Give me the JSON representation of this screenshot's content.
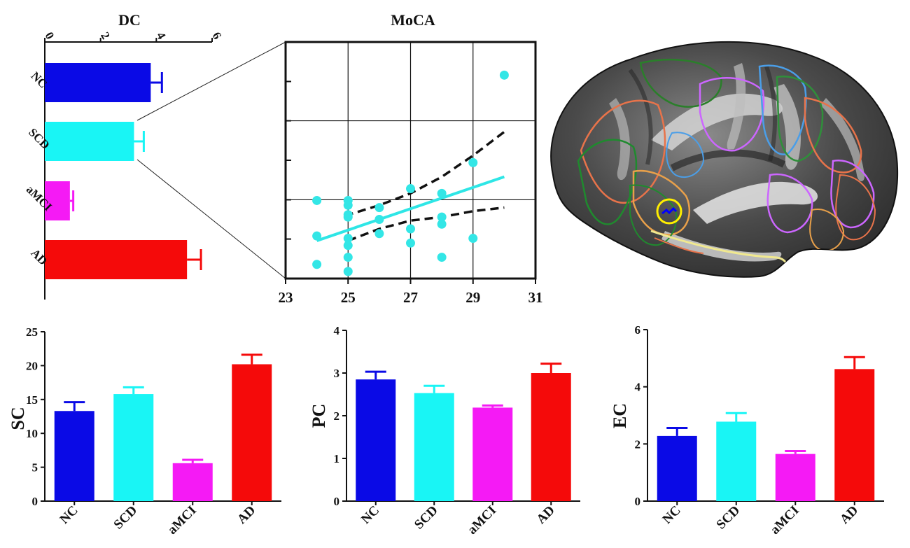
{
  "chart_data": [
    {
      "id": "dc",
      "type": "bar",
      "orientation": "horizontal",
      "title": "DC",
      "categories": [
        "NC",
        "SCD",
        "aMCI",
        "AD"
      ],
      "values": [
        3.8,
        3.2,
        0.9,
        5.1
      ],
      "errors": [
        0.4,
        0.35,
        0.12,
        0.5
      ],
      "colors": [
        "#0a0ae6",
        "#19f5f5",
        "#f51af5",
        "#f50a0a"
      ],
      "xlim": [
        0,
        6
      ],
      "ticks": [
        0,
        2,
        4,
        6
      ],
      "tick_labels": [
        "0",
        "2",
        "4",
        "6"
      ]
    },
    {
      "id": "moca",
      "type": "scatter",
      "title": "MoCA",
      "xlim": [
        23,
        31
      ],
      "xticks": [
        23,
        25,
        27,
        29,
        31
      ],
      "xtick_labels": [
        "23",
        "25",
        "27",
        "29",
        "31"
      ],
      "ylim": [
        0,
        1
      ],
      "points": [
        {
          "x": 24,
          "y": 0.33
        },
        {
          "x": 24,
          "y": 0.18
        },
        {
          "x": 24,
          "y": 0.06
        },
        {
          "x": 25,
          "y": 0.33
        },
        {
          "x": 25,
          "y": 0.31
        },
        {
          "x": 25,
          "y": 0.27
        },
        {
          "x": 25,
          "y": 0.26
        },
        {
          "x": 25,
          "y": 0.17
        },
        {
          "x": 25,
          "y": 0.14
        },
        {
          "x": 25,
          "y": 0.09
        },
        {
          "x": 25,
          "y": 0.03
        },
        {
          "x": 26,
          "y": 0.3
        },
        {
          "x": 26,
          "y": 0.25
        },
        {
          "x": 26,
          "y": 0.19
        },
        {
          "x": 27,
          "y": 0.38
        },
        {
          "x": 27,
          "y": 0.21
        },
        {
          "x": 27,
          "y": 0.15
        },
        {
          "x": 28,
          "y": 0.36
        },
        {
          "x": 28,
          "y": 0.26
        },
        {
          "x": 28,
          "y": 0.23
        },
        {
          "x": 28,
          "y": 0.09
        },
        {
          "x": 29,
          "y": 0.49
        },
        {
          "x": 29,
          "y": 0.17
        },
        {
          "x": 30,
          "y": 0.86
        }
      ],
      "point_color": "#33e6e6",
      "fit_line": {
        "x": [
          24,
          30
        ],
        "y": [
          0.16,
          0.43
        ],
        "color": "#2ee6e6"
      },
      "ci_upper": [
        {
          "x": 24.9,
          "y": 0.265
        },
        {
          "x": 26,
          "y": 0.31
        },
        {
          "x": 27,
          "y": 0.36
        },
        {
          "x": 28,
          "y": 0.43
        },
        {
          "x": 29,
          "y": 0.52
        },
        {
          "x": 30,
          "y": 0.62
        }
      ],
      "ci_lower": [
        {
          "x": 25,
          "y": 0.16
        },
        {
          "x": 26,
          "y": 0.21
        },
        {
          "x": 27,
          "y": 0.245
        },
        {
          "x": 28,
          "y": 0.26
        },
        {
          "x": 29,
          "y": 0.285
        },
        {
          "x": 30,
          "y": 0.3
        }
      ]
    },
    {
      "id": "sc",
      "type": "bar",
      "ylabel": "SC",
      "categories": [
        "NC",
        "SCD",
        "aMCI",
        "AD"
      ],
      "values": [
        13.3,
        15.8,
        5.6,
        20.2
      ],
      "errors": [
        1.3,
        1.0,
        0.5,
        1.4
      ],
      "colors": [
        "#0a0ae6",
        "#19f5f5",
        "#f51af5",
        "#f50a0a"
      ],
      "ylim": [
        0,
        25
      ],
      "ticks": [
        0,
        5,
        10,
        15,
        20,
        25
      ],
      "tick_labels": [
        "0",
        "5",
        "10",
        "15",
        "20",
        "25"
      ]
    },
    {
      "id": "pc",
      "type": "bar",
      "ylabel": "PC",
      "categories": [
        "NC",
        "SCD",
        "aMCI",
        "AD"
      ],
      "values": [
        2.85,
        2.53,
        2.19,
        3.0
      ],
      "errors": [
        0.18,
        0.17,
        0.05,
        0.22
      ],
      "colors": [
        "#0a0ae6",
        "#19f5f5",
        "#f51af5",
        "#f50a0a"
      ],
      "ylim": [
        0,
        4
      ],
      "ticks": [
        0,
        1,
        2,
        3,
        4
      ],
      "tick_labels": [
        "0",
        "1",
        "2",
        "3",
        "4"
      ]
    },
    {
      "id": "ec",
      "type": "bar",
      "ylabel": "EC",
      "categories": [
        "NC",
        "SCD",
        "aMCI",
        "AD"
      ],
      "values": [
        2.28,
        2.78,
        1.65,
        4.62
      ],
      "errors": [
        0.28,
        0.3,
        0.1,
        0.42
      ],
      "colors": [
        "#0a0ae6",
        "#19f5f5",
        "#f51af5",
        "#f50a0a"
      ],
      "ylim": [
        0,
        6
      ],
      "ticks": [
        0,
        2,
        4,
        6
      ],
      "tick_labels": [
        "0",
        "2",
        "4",
        "6"
      ]
    }
  ]
}
